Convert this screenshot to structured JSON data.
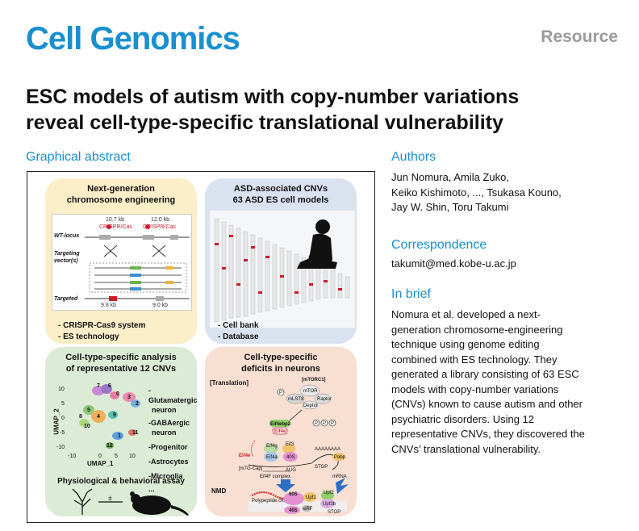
{
  "header": {
    "journal": "Cell Genomics",
    "article_type": "Resource"
  },
  "title_line1": "ESC models of autism with copy-number variations",
  "title_line2": "reveal cell-type-specific translational vulnerability",
  "graphical_abstract": {
    "label": "Graphical abstract",
    "panel1": {
      "title1": "Next-generation",
      "title2": "chromosome engineering",
      "wt_locus": "WT-locus",
      "targeting": "Targeting",
      "vector": "vector(s)",
      "targeted": "Targeted",
      "crispr": "CRISPR/Cas",
      "len1": "10.7 kb",
      "len2": "12.0 kb",
      "len3": "9.8 kb",
      "len4": "9.0 kb",
      "bullet1": "- CRISPR-Cas9 system",
      "bullet2": "- ES technology"
    },
    "panel2": {
      "title1": "ASD-associated CNVs",
      "title2": "63 ASD ES cell models",
      "bullet1": "- Cell bank",
      "bullet2": "- Database"
    },
    "panel3": {
      "title1": "Cell-type-specific analysis",
      "title2": "of representative 12 CNVs",
      "ylabel": "UMAP_2",
      "xlabel": "UMAP_1",
      "xticks": [
        "-10",
        "0",
        "5",
        "10"
      ],
      "yticks": [
        "10",
        "5",
        "0",
        "-5",
        "-10"
      ],
      "legend": [
        "-Glutamatergic",
        "neuron",
        "-GABAergic",
        "neuron",
        "-Progenitor",
        "-Astrocytes",
        "-Microglia",
        "..."
      ],
      "clusters": [
        "7",
        "6",
        "0",
        "3",
        "2",
        "5",
        "8",
        "4",
        "9",
        "10",
        "1",
        "11",
        "12"
      ],
      "assay": "Physiological & behavioral assay"
    },
    "panel4": {
      "title1": "Cell-type-specific",
      "title2": "deficits in neurons",
      "translation": "[Translation]",
      "mtorc1": "[mTORC1]",
      "mtor": "mTOR",
      "mlst8": "mLST8",
      "raptor": "Raptor",
      "deptor": "Deptor",
      "e4ebp2": "Eif4ebp2",
      "e4e": "Eif4e",
      "e4g": "Eif4g",
      "e4a": "Eif4a",
      "e3": "Eif3",
      "s40": "40S",
      "cap": "[m7G-Cap]",
      "aug": "AUG",
      "stop": "STOP",
      "mrna": "mRNA",
      "polya": "AAAAAAAA",
      "pabp": "Pabp",
      "complex": "Eif4F complex",
      "nmd": "NMD",
      "polypeptide": "Polypeptide chain",
      "s60": "60S",
      "upf1": "Upf1",
      "upf2": "Upf2",
      "upf3b": "Upf3b",
      "erf": "eRF",
      "s40b": "40S",
      "stop2": "STOP"
    }
  },
  "sidebar": {
    "authors_heading": "Authors",
    "authors_line1": "Jun Nomura, Amila Zuko,",
    "authors_line2": "Keiko Kishimoto, ..., Tsukasa Kouno,",
    "authors_line3": "Jay W. Shin, Toru Takumi",
    "correspondence_heading": "Correspondence",
    "email": "takumit@med.kobe-u.ac.jp",
    "inbrief_heading": "In brief",
    "inbrief_lines": [
      "Nomura et al. developed a next-",
      "generation chromosome-engineering",
      "technique using genome editing",
      "combined with ES technology. They",
      "generated a library consisting of 63 ESC",
      "models with copy-number variations",
      "(CNVs) known to cause autism and other",
      "psychiatric disorders. Using 12",
      "representative CNVs, they discovered the",
      "CNVs’ translational vulnerability."
    ]
  },
  "colors": {
    "brand": "#1a8fd0",
    "article_type": "#9a9a9a"
  }
}
